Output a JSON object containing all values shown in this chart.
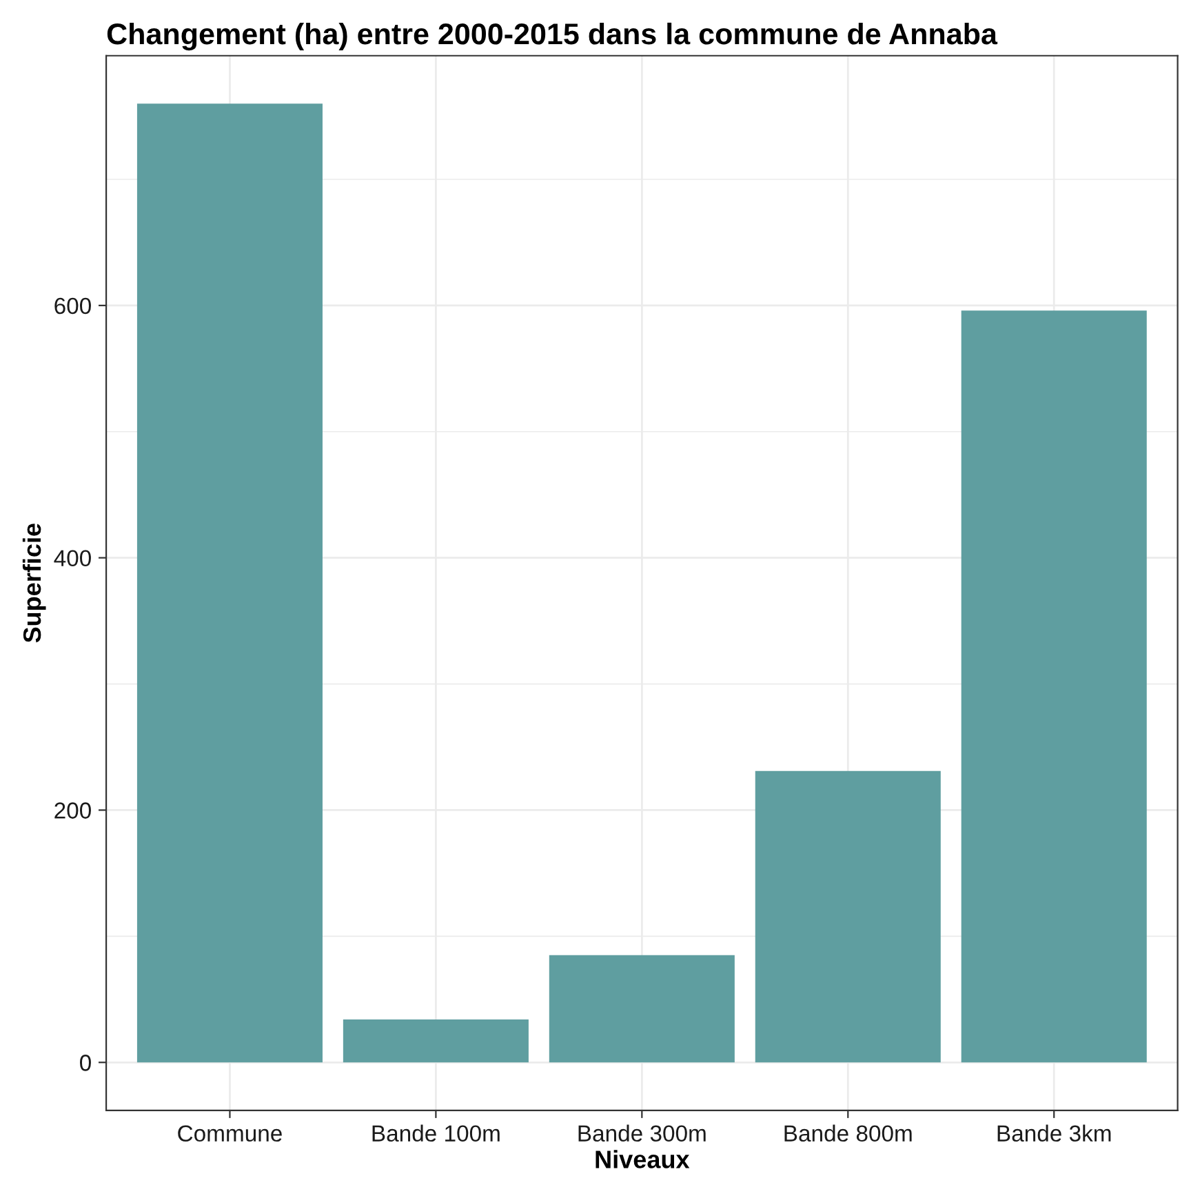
{
  "chart_data": {
    "type": "bar",
    "title": "Changement (ha) entre 2000-2015 dans la commune de Annaba",
    "xlabel": "Niveaux",
    "ylabel": "Superficie",
    "categories": [
      "Commune",
      "Bande 100m",
      "Bande 300m",
      "Bande 800m",
      "Bande 3km"
    ],
    "values": [
      760,
      34,
      85,
      231,
      596
    ],
    "color": "#5f9ea0",
    "ylim": [
      -38,
      798
    ],
    "yticks": [
      0,
      200,
      400,
      600
    ],
    "grid": true
  }
}
